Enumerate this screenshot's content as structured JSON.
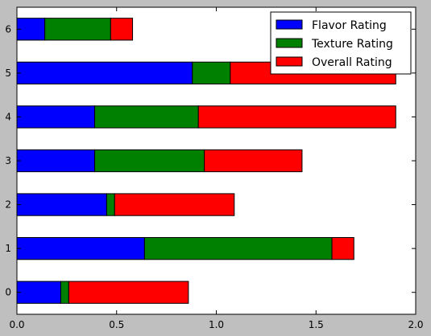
{
  "chart_data": {
    "type": "bar",
    "orientation": "horizontal",
    "stacked": true,
    "categories": [
      "0",
      "1",
      "2",
      "3",
      "4",
      "5",
      "6"
    ],
    "series": [
      {
        "name": "Flavor Rating",
        "color": "#0000ff",
        "values": [
          0.22,
          0.64,
          0.45,
          0.39,
          0.39,
          0.88,
          0.14
        ]
      },
      {
        "name": "Texture Rating",
        "color": "#008000",
        "values": [
          0.04,
          0.94,
          0.04,
          0.55,
          0.52,
          0.19,
          0.33
        ]
      },
      {
        "name": "Overall Rating",
        "color": "#ff0000",
        "values": [
          0.6,
          0.11,
          0.6,
          0.49,
          0.99,
          0.83,
          0.11
        ]
      }
    ],
    "xlim": [
      0,
      2.0
    ],
    "xticks": [
      "0.0",
      "0.5",
      "1.0",
      "1.5",
      "2.0"
    ],
    "grid": false,
    "legend_position": "top-right"
  }
}
